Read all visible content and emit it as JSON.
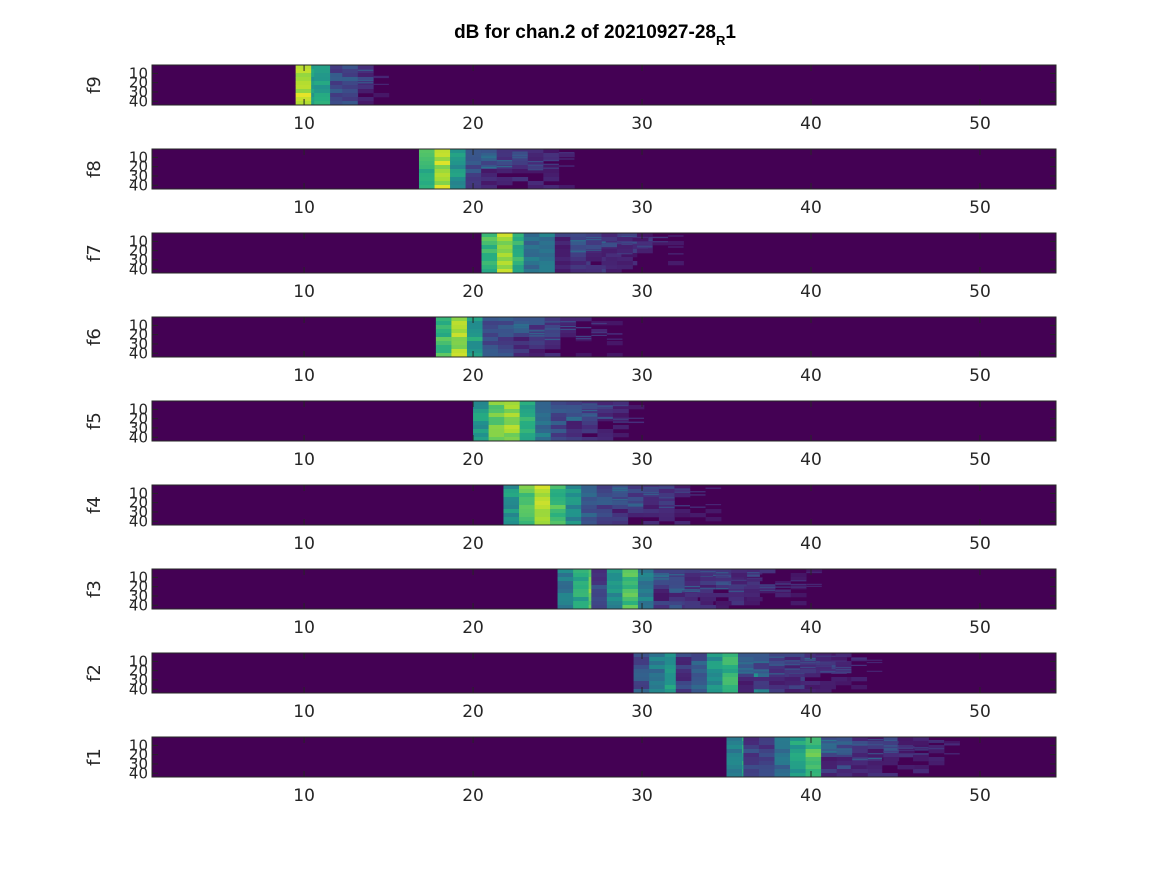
{
  "figure": {
    "title_main": "dB for chan.2 of 20210927-28",
    "title_subscript": "R",
    "title_suffix": "1"
  },
  "colors": {
    "background": "#440154",
    "frame": "#262626",
    "colormap": "viridis"
  },
  "chart_data": {
    "type": "heatmap",
    "colormap": "viridis",
    "xlim": [
      1,
      54.5
    ],
    "ylim": [
      1,
      44
    ],
    "y_reversed": true,
    "x_ticks": [
      "10",
      "20",
      "30",
      "40",
      "50"
    ],
    "y_ticks": [
      "10",
      "20",
      "30",
      "40"
    ],
    "panels": [
      {
        "ylabel": "f9",
        "bursts": [
          {
            "x_start": 9.5,
            "x_end": 13.0,
            "peak_x": 10.0,
            "peak_intensity": 0.92,
            "tail_end": 14.5
          },
          {
            "x_start": 10.6,
            "x_end": 11.5,
            "peak_x": 11.0,
            "peak_intensity": 0.62,
            "tail_end": 11.5
          }
        ]
      },
      {
        "ylabel": "f8",
        "bursts": [
          {
            "x_start": 16.8,
            "x_end": 20.5,
            "peak_x": 18.0,
            "peak_intensity": 0.95,
            "tail_end": 26.0
          }
        ]
      },
      {
        "ylabel": "f7",
        "bursts": [
          {
            "x_start": 20.5,
            "x_end": 26.0,
            "peak_x": 21.8,
            "peak_intensity": 0.88,
            "tail_end": 32.0
          },
          {
            "x_start": 23.0,
            "x_end": 25.5,
            "peak_x": 24.0,
            "peak_intensity": 0.55,
            "tail_end": 30.0
          }
        ]
      },
      {
        "ylabel": "f6",
        "bursts": [
          {
            "x_start": 17.8,
            "x_end": 22.0,
            "peak_x": 19.0,
            "peak_intensity": 0.93,
            "tail_end": 28.5
          }
        ]
      },
      {
        "ylabel": "f5",
        "bursts": [
          {
            "x_start": 20.0,
            "x_end": 25.5,
            "peak_x": 22.0,
            "peak_intensity": 0.93,
            "tail_end": 30.0
          }
        ]
      },
      {
        "ylabel": "f4",
        "bursts": [
          {
            "x_start": 21.8,
            "x_end": 28.0,
            "peak_x": 24.0,
            "peak_intensity": 0.92,
            "tail_end": 34.0
          }
        ]
      },
      {
        "ylabel": "f3",
        "bursts": [
          {
            "x_start": 25.0,
            "x_end": 32.0,
            "peak_x": 28.0,
            "peak_intensity": 0.92,
            "tail_end": 40.0
          },
          {
            "x_start": 27.0,
            "x_end": 30.5,
            "peak_x": 29.2,
            "peak_intensity": 0.75,
            "tail_end": 37.0
          }
        ]
      },
      {
        "ylabel": "f2",
        "bursts": [
          {
            "x_start": 29.5,
            "x_end": 38.0,
            "peak_x": 34.0,
            "peak_intensity": 0.9,
            "tail_end": 43.5
          },
          {
            "x_start": 32.0,
            "x_end": 36.0,
            "peak_x": 35.0,
            "peak_intensity": 0.7,
            "tail_end": 42.0
          }
        ]
      },
      {
        "ylabel": "f1",
        "bursts": [
          {
            "x_start": 35.0,
            "x_end": 42.0,
            "peak_x": 38.0,
            "peak_intensity": 0.9,
            "tail_end": 48.5
          },
          {
            "x_start": 36.0,
            "x_end": 41.0,
            "peak_x": 40.0,
            "peak_intensity": 0.75,
            "tail_end": 46.0
          }
        ]
      }
    ]
  }
}
